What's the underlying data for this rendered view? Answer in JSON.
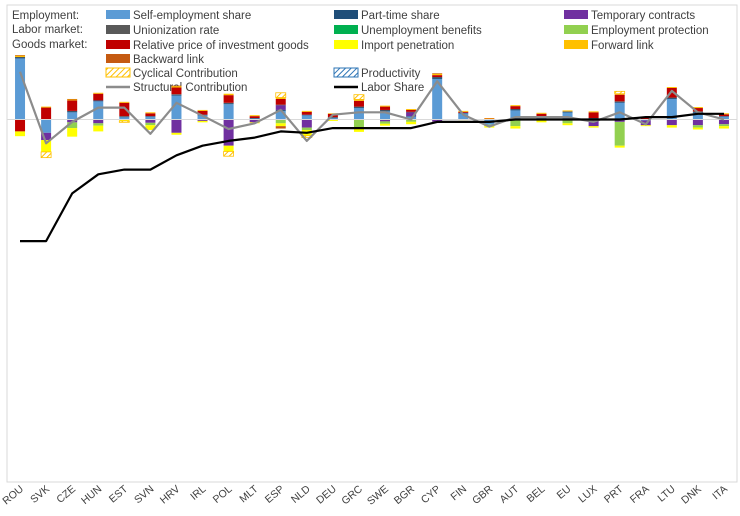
{
  "chart_data": {
    "type": "bar",
    "stacked": true,
    "title": "",
    "xlabel": "",
    "ylabel": "",
    "ylim": [
      -7.6,
      2.4
    ],
    "grid": false,
    "legend_position": "top",
    "legend_group_labels": [
      "Employment:",
      "Labor market:",
      "Goods market:"
    ],
    "categories": [
      "ROU",
      "SVK",
      "CZE",
      "HUN",
      "EST",
      "SVN",
      "HRV",
      "IRL",
      "POL",
      "MLT",
      "ESP",
      "NLD",
      "DEU",
      "GRC",
      "SWE",
      "BGR",
      "CYP",
      "FIN",
      "GBR",
      "AUT",
      "BEL",
      "EU",
      "LUX",
      "PRT",
      "FRA",
      "LTU",
      "DNK",
      "ITA"
    ],
    "series": [
      {
        "name": "Self-employment share",
        "color": "#5B9BD5",
        "pattern": "solid",
        "values": [
          1.28,
          -0.28,
          0.15,
          0.38,
          0.05,
          0.06,
          0.5,
          0.09,
          0.32,
          0.02,
          0.18,
          0.09,
          0.03,
          0.24,
          0.17,
          0.06,
          0.85,
          0.13,
          -0.11,
          0.19,
          0.05,
          0.15,
          0.02,
          0.35,
          -0.02,
          0.43,
          0.14,
          0.06
        ]
      },
      {
        "name": "Part-time share",
        "color": "#1F4E79",
        "pattern": "solid",
        "values": [
          0.02,
          0,
          0.02,
          0.02,
          0.01,
          0.01,
          0.02,
          0.01,
          0.02,
          0.01,
          0.02,
          0.01,
          0.01,
          0.02,
          0.02,
          0.01,
          0.03,
          0.01,
          0.01,
          0.02,
          0.01,
          0.01,
          0.01,
          0.02,
          0.01,
          0.02,
          0.02,
          0.01
        ]
      },
      {
        "name": "Temporary contracts",
        "color": "#7030A0",
        "pattern": "solid",
        "values": [
          0,
          -0.15,
          -0.06,
          -0.08,
          0,
          -0.07,
          -0.28,
          -0.03,
          -0.55,
          -0.06,
          0.1,
          -0.17,
          0,
          0,
          -0.04,
          0.08,
          -0.05,
          0,
          0,
          -0.02,
          0,
          0,
          -0.14,
          -0.05,
          -0.1,
          -0.12,
          -0.12,
          -0.1
        ]
      },
      {
        "name": "Unionization rate",
        "color": "#595959",
        "pattern": "solid",
        "values": [
          0.01,
          0,
          0.01,
          0,
          0.01,
          0,
          0.01,
          0,
          0.01,
          0,
          0.01,
          0,
          0.01,
          0.01,
          0.01,
          0.01,
          0.01,
          0,
          0,
          0.01,
          0,
          0.01,
          0,
          0.01,
          0,
          0.01,
          0.01,
          0
        ]
      },
      {
        "name": "Unemployment benefits",
        "color": "#00B050",
        "pattern": "solid",
        "values": [
          0,
          0,
          0,
          0,
          0,
          0,
          0,
          0,
          0,
          0,
          0,
          0,
          0,
          0,
          0,
          0,
          0,
          0,
          0,
          0,
          0,
          0,
          0,
          0,
          0,
          0,
          0,
          0
        ]
      },
      {
        "name": "Employment protection",
        "color": "#92D050",
        "pattern": "solid",
        "values": [
          0,
          0,
          -0.12,
          -0.05,
          0,
          -0.05,
          0,
          0,
          0,
          0,
          -0.08,
          -0.05,
          0,
          -0.18,
          -0.05,
          -0.05,
          0,
          0,
          -0.03,
          -0.12,
          -0.02,
          -0.08,
          0,
          -0.5,
          0,
          0,
          -0.05,
          -0.04
        ]
      },
      {
        "name": "Relative price of investment goods",
        "color": "#C00000",
        "pattern": "solid",
        "values": [
          -0.25,
          0.25,
          0.22,
          0.14,
          0.28,
          0.06,
          0.14,
          0.08,
          0.16,
          0.04,
          0.12,
          0.06,
          0.07,
          0.12,
          0.07,
          0.04,
          0.04,
          0.02,
          0.01,
          0.06,
          0.06,
          0,
          0.12,
          0.14,
          0.04,
          0.2,
          0.07,
          0.04
        ]
      },
      {
        "name": "Import penetration",
        "color": "#FFFF00",
        "pattern": "solid",
        "values": [
          -0.1,
          -0.25,
          -0.18,
          -0.12,
          -0.03,
          -0.1,
          -0.04,
          -0.03,
          -0.12,
          -0.02,
          -0.06,
          -0.12,
          -0.03,
          -0.08,
          -0.04,
          -0.05,
          -0.02,
          -0.01,
          -0.03,
          -0.05,
          -0.04,
          -0.04,
          -0.03,
          -0.04,
          -0.02,
          -0.05,
          -0.04,
          -0.05
        ]
      },
      {
        "name": "Forward link",
        "color": "#FFC000",
        "pattern": "solid",
        "values": [
          0.03,
          0.02,
          0.02,
          0.02,
          0.02,
          0.02,
          0.03,
          0.02,
          0.03,
          0.02,
          0.03,
          0.02,
          0.01,
          0.03,
          0.02,
          0.02,
          0.03,
          0.02,
          0.01,
          0.02,
          0.02,
          0.02,
          0.02,
          0.02,
          0.01,
          0.02,
          0.02,
          0.02
        ]
      },
      {
        "name": "Backward link",
        "color": "#C55A11",
        "pattern": "solid",
        "values": [
          0.01,
          0,
          0.01,
          0,
          0,
          0,
          0.01,
          0,
          0,
          0,
          -0.05,
          0,
          0,
          0,
          0,
          0,
          0.01,
          0,
          0,
          0,
          0,
          0,
          0,
          0,
          0,
          0,
          0,
          0
        ]
      },
      {
        "name": "Cyclical Contribution",
        "color": "#FFC000",
        "pattern": "hatch",
        "values": [
          0,
          -0.12,
          0,
          0,
          -0.03,
          0,
          0,
          0,
          -0.1,
          0,
          0.1,
          -0.04,
          0,
          0.1,
          0,
          0,
          0,
          0,
          0,
          0,
          0,
          0,
          0,
          0.05,
          0,
          0,
          0,
          0
        ]
      },
      {
        "name": "Productivity",
        "color": "#2E75B6",
        "pattern": "hatch",
        "values": [
          0,
          0,
          0,
          0,
          0,
          0,
          0,
          0,
          0,
          0,
          0,
          0,
          0,
          0,
          0,
          0,
          0,
          0,
          0,
          0,
          0,
          0,
          0,
          0,
          0,
          0,
          0,
          0
        ]
      }
    ],
    "lines": [
      {
        "name": "Structural Contribution",
        "color": "#8C8C8C",
        "values": [
          1.0,
          -0.5,
          -0.05,
          0.25,
          0.25,
          -0.3,
          0.35,
          0.08,
          -0.2,
          -0.08,
          0.2,
          -0.45,
          0.1,
          0.15,
          0.15,
          0.0,
          0.8,
          0.1,
          -0.15,
          0.05,
          0.05,
          0.05,
          -0.05,
          0.15,
          -0.1,
          0.6,
          0.15,
          0.0
        ]
      },
      {
        "name": "Labor Share",
        "color": "#000000",
        "values": [
          -2.55,
          -2.55,
          -1.55,
          -1.15,
          -1.05,
          -1.05,
          -0.75,
          -0.55,
          -0.45,
          -0.38,
          -0.25,
          -0.28,
          -0.18,
          -0.18,
          -0.18,
          -0.18,
          -0.05,
          -0.05,
          -0.05,
          0.0,
          0.0,
          0.0,
          0.0,
          0.0,
          0.05,
          0.05,
          0.12,
          0.12
        ]
      }
    ]
  }
}
